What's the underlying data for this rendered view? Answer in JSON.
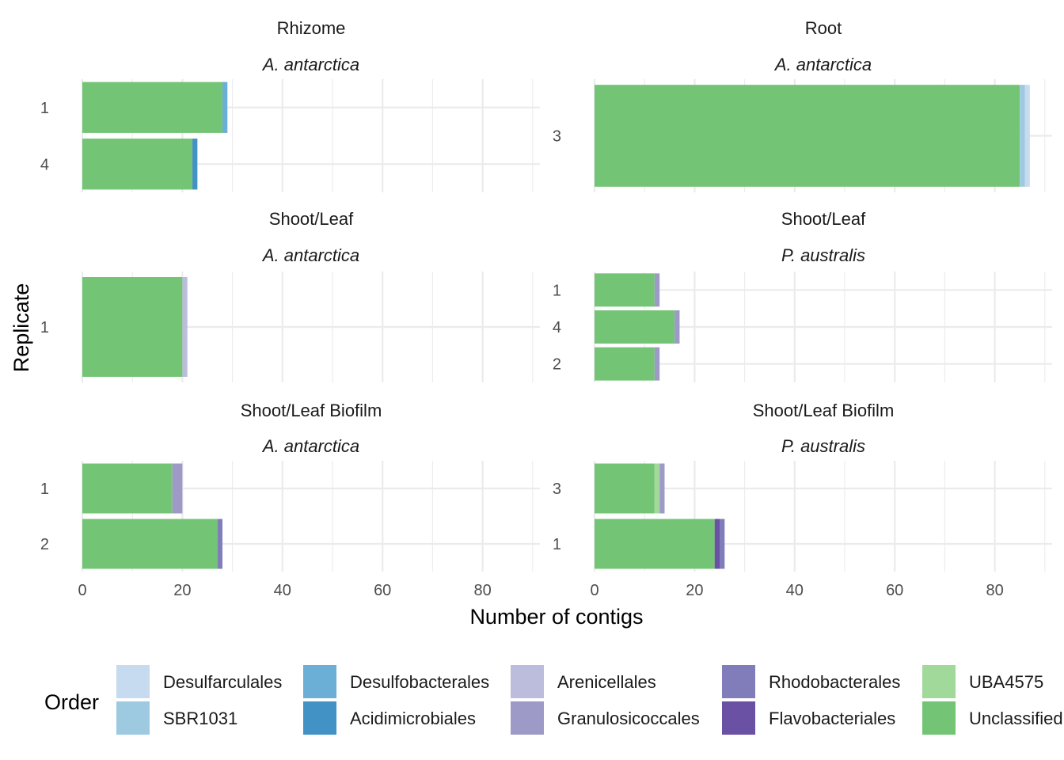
{
  "chart_data": {
    "type": "bar",
    "orientation": "horizontal",
    "stacked": true,
    "xlabel": "Number of contigs",
    "ylabel": "Replicate",
    "xlim": [
      0,
      90
    ],
    "x_ticks": [
      0,
      20,
      40,
      60,
      80
    ],
    "grid": true,
    "legend": {
      "title": "Order",
      "position": "bottom",
      "entries": [
        {
          "name": "Desulfarculales",
          "color": "#C6DBEF"
        },
        {
          "name": "SBR1031",
          "color": "#9ECAE1"
        },
        {
          "name": "Desulfobacterales",
          "color": "#6BAED6"
        },
        {
          "name": "Acidimicrobiales",
          "color": "#4292C6"
        },
        {
          "name": "Arenicellales",
          "color": "#BCBDDC"
        },
        {
          "name": "Granulosicoccales",
          "color": "#9E9AC8"
        },
        {
          "name": "Rhodobacterales",
          "color": "#807DBA"
        },
        {
          "name": "Flavobacteriales",
          "color": "#6A51A3"
        },
        {
          "name": "UBA4575",
          "color": "#A1D99B"
        },
        {
          "name": "Unclassified",
          "color": "#74C476"
        }
      ]
    },
    "panels": [
      {
        "title": "Rhizome",
        "subtitle": "A. antarctica",
        "bars": [
          {
            "replicate": "1",
            "segments": [
              {
                "order": "Unclassified",
                "value": 28
              },
              {
                "order": "Desulfobacterales",
                "value": 1
              }
            ]
          },
          {
            "replicate": "4",
            "segments": [
              {
                "order": "Unclassified",
                "value": 22
              },
              {
                "order": "Acidimicrobiales",
                "value": 1
              }
            ]
          }
        ]
      },
      {
        "title": "Root",
        "subtitle": "A. antarctica",
        "bars": [
          {
            "replicate": "3",
            "segments": [
              {
                "order": "Unclassified",
                "value": 85
              },
              {
                "order": "SBR1031",
                "value": 1
              },
              {
                "order": "Desulfarculales",
                "value": 1
              }
            ]
          }
        ]
      },
      {
        "title": "Shoot/Leaf",
        "subtitle": "A. antarctica",
        "bars": [
          {
            "replicate": "1",
            "segments": [
              {
                "order": "Unclassified",
                "value": 20
              },
              {
                "order": "Arenicellales",
                "value": 1
              }
            ]
          }
        ]
      },
      {
        "title": "Shoot/Leaf",
        "subtitle": "P. australis",
        "bars": [
          {
            "replicate": "1",
            "segments": [
              {
                "order": "Unclassified",
                "value": 12
              },
              {
                "order": "Granulosicoccales",
                "value": 1
              }
            ]
          },
          {
            "replicate": "4",
            "segments": [
              {
                "order": "Unclassified",
                "value": 16
              },
              {
                "order": "Granulosicoccales",
                "value": 1
              }
            ]
          },
          {
            "replicate": "2",
            "segments": [
              {
                "order": "Unclassified",
                "value": 12
              },
              {
                "order": "Granulosicoccales",
                "value": 1
              }
            ]
          }
        ]
      },
      {
        "title": "Shoot/Leaf Biofilm",
        "subtitle": "A. antarctica",
        "bars": [
          {
            "replicate": "1",
            "segments": [
              {
                "order": "Unclassified",
                "value": 18
              },
              {
                "order": "Granulosicoccales",
                "value": 2
              }
            ]
          },
          {
            "replicate": "2",
            "segments": [
              {
                "order": "Unclassified",
                "value": 27
              },
              {
                "order": "Rhodobacterales",
                "value": 1
              }
            ]
          }
        ]
      },
      {
        "title": "Shoot/Leaf Biofilm",
        "subtitle": "P. australis",
        "bars": [
          {
            "replicate": "3",
            "segments": [
              {
                "order": "Unclassified",
                "value": 12
              },
              {
                "order": "UBA4575",
                "value": 1
              },
              {
                "order": "Granulosicoccales",
                "value": 1
              }
            ]
          },
          {
            "replicate": "1",
            "segments": [
              {
                "order": "Unclassified",
                "value": 24
              },
              {
                "order": "Flavobacteriales",
                "value": 1
              },
              {
                "order": "Rhodobacterales",
                "value": 1
              }
            ]
          }
        ]
      }
    ]
  }
}
